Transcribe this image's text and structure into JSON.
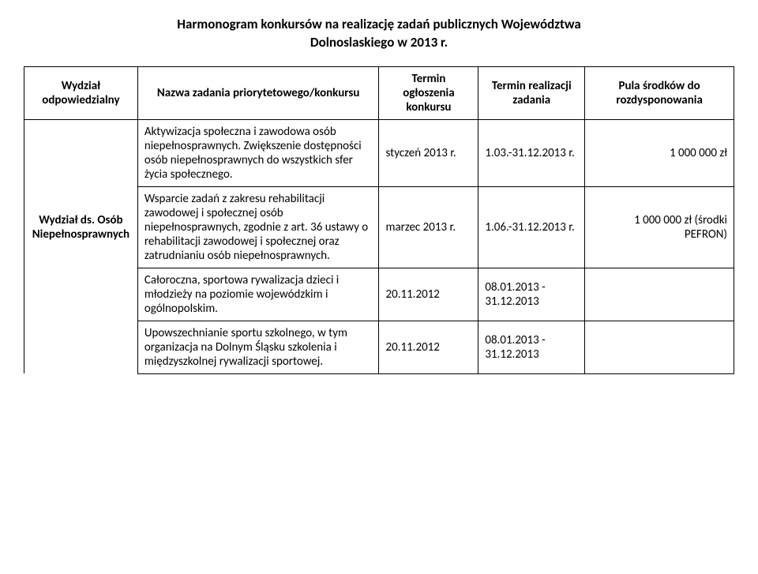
{
  "title_line1": "Harmonogram konkursów na realizację zadań publicznych Województwa",
  "title_line2": "Dolnoslaskiegο w 2013 r.",
  "headers": {
    "dept": "Wydział odpowiedzialny",
    "task": "Nazwa zadania priorytetowego/konkursu",
    "announce": "Termin ogłoszenia konkursu",
    "realize": "Termin realizacji zadania",
    "funds": "Pula środków do rozdysponowania"
  },
  "dept_label": "Wydział ds. Osób Niepełnosprawnych",
  "rows": [
    {
      "task": "Aktywizacja społeczna i zawodowa osób niepełnosprawnych. Zwiększenie dostępności osób niepełnosprawnych do wszystkich sfer życia społecznego.",
      "announce": "styczeń 2013 r.",
      "realize": "1.03.-31.12.2013 r.",
      "funds": "1 000 000 zł"
    },
    {
      "task": "Wsparcie zadań z zakresu rehabilitacji zawodowej i społecznej osób niepełnosprawnych, zgodnie z art. 36 ustawy o rehabilitacji zawodowej i społecznej oraz zatrudnianiu osób niepełnosprawnych.",
      "announce": "marzec 2013 r.",
      "realize": "1.06.-31.12.2013 r.",
      "funds": "1 000 000 zł    (środki PEFRON)"
    },
    {
      "task": "Całoroczna, sportowa rywalizacja dzieci i młodzieży na poziomie wojewódzkim i ogólnopolskim.",
      "announce": "20.11.2012",
      "realize": "08.01.2013 - 31.12.2013",
      "funds": ""
    },
    {
      "task": "Upowszechnianie sportu szkolnego, w tym organizacja na Dolnym Śląsku szkolenia i międzyszkolnej rywalizacji sportowej.",
      "announce": "20.11.2012",
      "realize": "08.01.2013 - 31.12.2013",
      "funds": ""
    }
  ]
}
